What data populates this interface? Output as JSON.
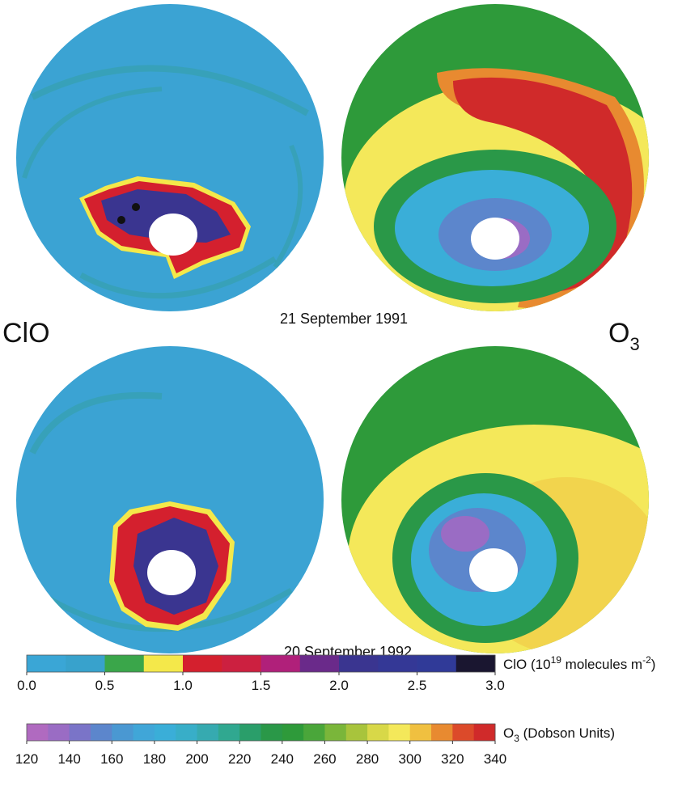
{
  "labels": {
    "left": "ClO",
    "right": {
      "base": "O",
      "sub": "3"
    }
  },
  "dates": [
    "21 September 1991",
    "20 September 1992"
  ],
  "colorbars": [
    {
      "label": {
        "pre": "ClO (10",
        "sup1": "19",
        "mid": " molecules m",
        "sup2": "-2",
        "post": ")"
      },
      "ticks": [
        {
          "value": 0,
          "label": "0.0"
        },
        0.5,
        {
          "value": 1,
          "label": "1.0"
        },
        1.5,
        {
          "value": 2,
          "label": "2.0"
        },
        2.5,
        {
          "value": 3,
          "label": "3.0"
        }
      ],
      "colors": [
        "#3aa6d6",
        "#38a2cc",
        "#3aa64a",
        "#f4e84a",
        "#d4202e",
        "#cc2040",
        "#b0207a",
        "#6a2a8a",
        "#3a3590",
        "#343896",
        "#303a98",
        "#1a1630"
      ]
    },
    {
      "label": {
        "base": "O",
        "sub": "3",
        "post": " (Dobson Units)"
      },
      "ticks": [
        120,
        140,
        160,
        180,
        200,
        220,
        240,
        260,
        280,
        300,
        320,
        340
      ],
      "colors": [
        "#b06ac0",
        "#9a6cc4",
        "#7a74c8",
        "#5c86cc",
        "#4a98d2",
        "#40a6d8",
        "#3aaed8",
        "#38aec8",
        "#36aab0",
        "#30a890",
        "#2a9e6a",
        "#2a9848",
        "#2e9a3a",
        "#4aa63a",
        "#7ab63a",
        "#a8c43c",
        "#d8d848",
        "#f4e85a",
        "#f0c040",
        "#e88a30",
        "#dc4a2a",
        "#d02a2a"
      ]
    }
  ]
}
